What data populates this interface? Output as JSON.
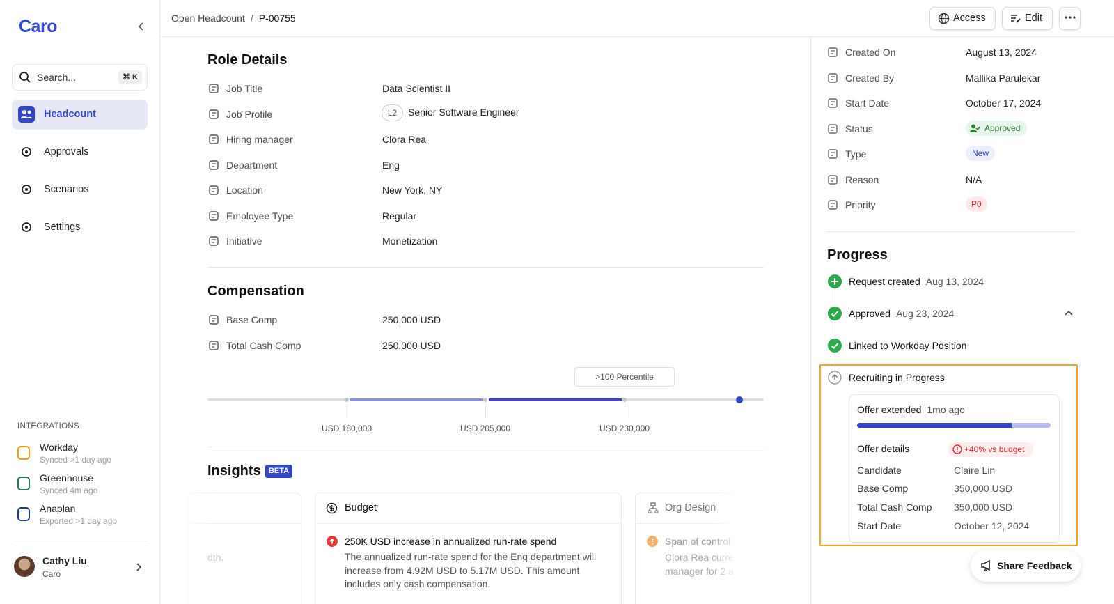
{
  "sidebar": {
    "logo": "Caro",
    "search_placeholder": "Search...",
    "search_shortcut": "⌘ K",
    "nav": [
      "Headcount",
      "Approvals",
      "Scenarios",
      "Settings"
    ],
    "integrations_title": "INTEGRATIONS",
    "integrations": [
      {
        "name": "Workday",
        "status": "Synced >1 day ago"
      },
      {
        "name": "Greenhouse",
        "status": "Synced 4m ago"
      },
      {
        "name": "Anaplan",
        "status": "Exported >1 day ago"
      }
    ],
    "user": {
      "name": "Cathy Liu",
      "org": "Caro"
    }
  },
  "header": {
    "breadcrumb": [
      "Open Headcount",
      "P-00755"
    ],
    "separator": "/",
    "buttons": [
      "Access",
      "Edit"
    ]
  },
  "role_details": {
    "title": "Role Details",
    "fields": [
      {
        "label": "Job Title",
        "value": "Data Scientist II"
      },
      {
        "label": "Job Profile",
        "badge": "L2",
        "value": "Senior Software Engineer"
      },
      {
        "label": "Hiring manager",
        "value": "Clora Rea"
      },
      {
        "label": "Department",
        "value": "Eng"
      },
      {
        "label": "Location",
        "value": "New York, NY"
      },
      {
        "label": "Employee Type",
        "value": "Regular"
      },
      {
        "label": "Initiative",
        "value": "Monetization"
      }
    ]
  },
  "compensation": {
    "title": "Compensation",
    "fields": [
      {
        "label": "Base Comp",
        "value": "250,000 USD"
      },
      {
        "label": "Total Cash Comp",
        "value": "250,000 USD"
      }
    ],
    "percentile": ">100 Percentile",
    "scale_labels": [
      "USD 180,000",
      "USD 205,000",
      "USD 230,000"
    ]
  },
  "insights": {
    "title": "Insights",
    "badge": "BETA",
    "cards": [
      {
        "body": "dth."
      },
      {
        "title": "Budget",
        "item_title": "250K USD increase in annualized run-rate spend",
        "body": "The annualized run-rate spend for the Eng department will increase from 4.92M USD to 5.17M USD. This amount includes only cash compensation."
      },
      {
        "title": "Org Design",
        "item_title": "Span of control",
        "body": "Clora Rea curre manager for 2 a"
      }
    ]
  },
  "details": {
    "fields": [
      {
        "label": "Created On",
        "value": "August 13, 2024"
      },
      {
        "label": "Created By",
        "value": "Mallika Parulekar"
      },
      {
        "label": "Start Date",
        "value": "October 17, 2024"
      },
      {
        "label": "Status",
        "value": "Approved"
      },
      {
        "label": "Type",
        "value": "New"
      },
      {
        "label": "Reason",
        "value": "N/A"
      },
      {
        "label": "Priority",
        "value": "P0"
      }
    ]
  },
  "progress": {
    "title": "Progress",
    "steps": [
      {
        "label": "Request created",
        "date": "Aug 13, 2024"
      },
      {
        "label": "Approved",
        "date": "Aug 23, 2024"
      },
      {
        "label": "Linked to Workday Position"
      },
      {
        "label": "Recruiting in Progress"
      }
    ],
    "offer": {
      "title": "Offer extended",
      "time": "1mo ago",
      "details_title": "Offer details",
      "budget_flag": "+40% vs budget",
      "fields": [
        {
          "label": "Candidate",
          "value": "Claire Lin"
        },
        {
          "label": "Base Comp",
          "value": "350,000 USD"
        },
        {
          "label": "Total Cash Comp",
          "value": "350,000 USD"
        },
        {
          "label": "Start Date",
          "value": "October 12, 2024"
        }
      ]
    }
  },
  "feedback_button": "Share Feedback"
}
